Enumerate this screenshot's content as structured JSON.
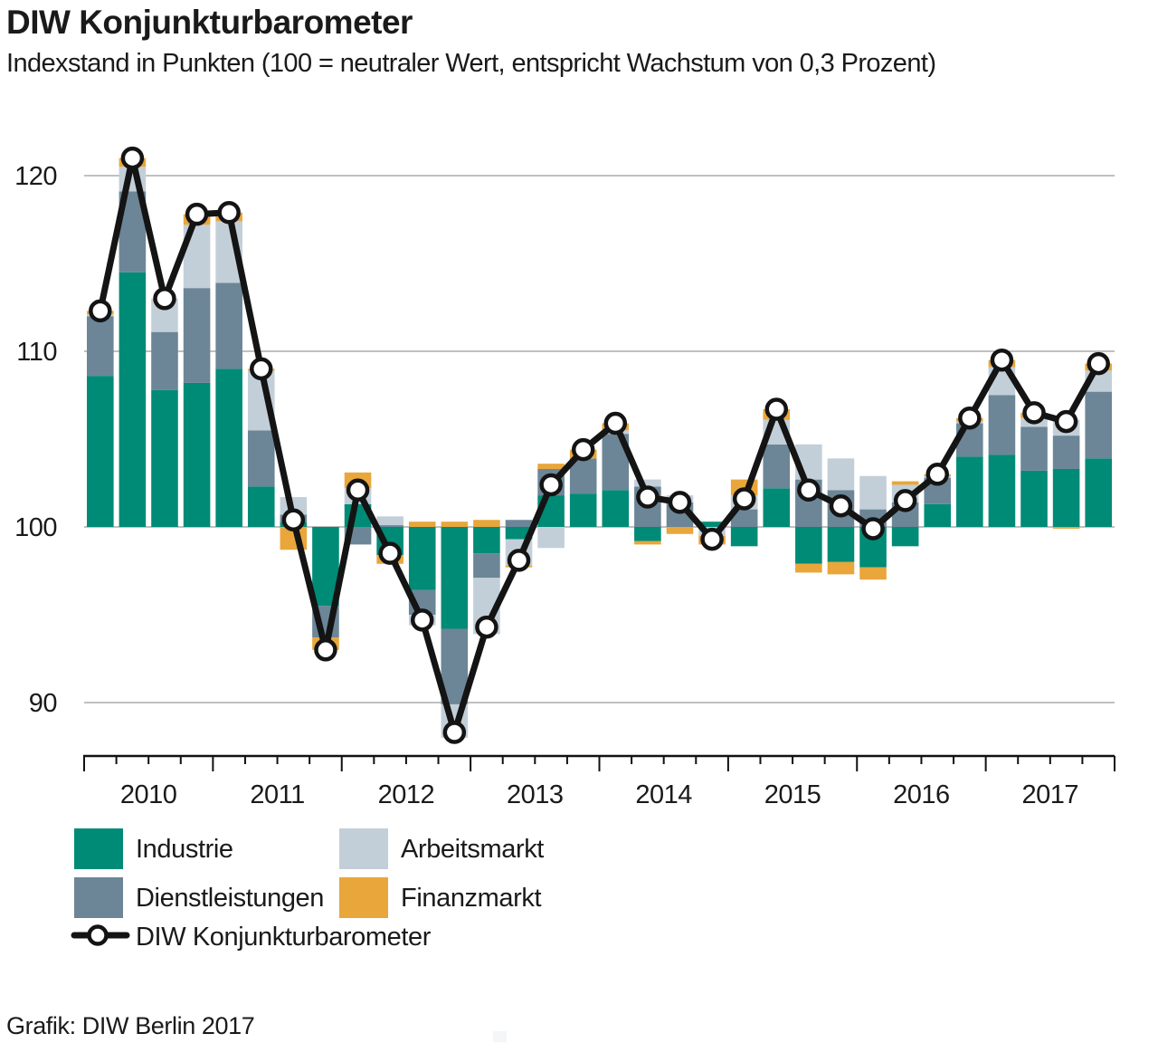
{
  "title": "DIW Konjunkturbarometer",
  "subtitle": "Indexstand in Punkten (100 = neutraler Wert, entspricht Wachstum von 0,3 Prozent)",
  "source": "Grafik: DIW Berlin 2017",
  "colors": {
    "industrie": "#008B76",
    "dienstleistungen": "#6C8697",
    "arbeitsmarkt": "#C3CFD8",
    "finanzmarkt": "#E9A63B",
    "line": "#141414",
    "grid": "#9B9B9B",
    "axis": "#111111",
    "text": "#1A1A1A"
  },
  "legend": {
    "items": [
      {
        "label": "Industrie",
        "color": "#008B76"
      },
      {
        "label": "Dienstleistungen",
        "color": "#6C8697"
      },
      {
        "label": "Arbeitsmarkt",
        "color": "#C3CFD8"
      },
      {
        "label": "Finanzmarkt",
        "color": "#E9A63B"
      },
      {
        "label": "DIW Konjunkturbarometer",
        "type": "line-marker"
      }
    ]
  },
  "chart_data": {
    "type": "bar",
    "stacked": true,
    "baseline": 100,
    "ylim": [
      86,
      123
    ],
    "yticks": [
      90,
      100,
      110,
      120
    ],
    "grid": "on",
    "legend_position": "bottom",
    "x_year_labels": [
      "2010",
      "2011",
      "2012",
      "2013",
      "2014",
      "2015",
      "2016",
      "2017"
    ],
    "categories": [
      "2010 Q1",
      "2010 Q2",
      "2010 Q3",
      "2010 Q4",
      "2011 Q1",
      "2011 Q2",
      "2011 Q3",
      "2011 Q4",
      "2012 Q1",
      "2012 Q2",
      "2012 Q3",
      "2012 Q4",
      "2013 Q1",
      "2013 Q2",
      "2013 Q3",
      "2013 Q4",
      "2014 Q1",
      "2014 Q2",
      "2014 Q3",
      "2014 Q4",
      "2015 Q1",
      "2015 Q2",
      "2015 Q3",
      "2015 Q4",
      "2016 Q1",
      "2016 Q2",
      "2016 Q3",
      "2016 Q4",
      "2017 Q1",
      "2017 Q2",
      "2017 Q3",
      "2017 Q4"
    ],
    "series": [
      {
        "name": "Industrie",
        "color": "#008B76",
        "values": [
          8.6,
          14.5,
          7.8,
          8.2,
          9.0,
          2.3,
          0.3,
          -4.5,
          1.3,
          -1.6,
          -3.6,
          -5.8,
          -1.5,
          -0.7,
          1.8,
          1.9,
          2.1,
          -0.8,
          0.0,
          0.3,
          -1.1,
          2.2,
          -2.1,
          -2.0,
          -2.3,
          -1.1,
          1.3,
          4.0,
          4.1,
          3.2,
          3.3,
          3.9
        ]
      },
      {
        "name": "Dienstleistungen",
        "color": "#6C8697",
        "values": [
          3.4,
          4.6,
          3.3,
          5.4,
          4.9,
          3.2,
          0.4,
          -1.8,
          -1.0,
          0.1,
          -1.4,
          -4.3,
          -1.4,
          0.4,
          1.5,
          2.0,
          3.2,
          2.3,
          1.4,
          0.0,
          1.0,
          2.5,
          2.7,
          2.1,
          1.0,
          1.4,
          1.5,
          1.9,
          3.4,
          2.5,
          1.9,
          3.8
        ]
      },
      {
        "name": "Arbeitsmarkt",
        "color": "#C3CFD8",
        "values": [
          0.1,
          1.4,
          1.9,
          3.6,
          3.5,
          3.4,
          1.0,
          0.0,
          0.9,
          0.5,
          -0.6,
          -1.9,
          -3.2,
          -1.5,
          -1.2,
          0.0,
          0.2,
          0.4,
          0.4,
          -0.5,
          0.8,
          1.4,
          2.0,
          1.8,
          1.9,
          1.0,
          0.1,
          0.1,
          1.6,
          0.5,
          0.9,
          1.2
        ]
      },
      {
        "name": "Finanzmarkt",
        "color": "#E9A63B",
        "values": [
          0.2,
          0.5,
          0.0,
          0.6,
          0.5,
          0.1,
          -1.3,
          -0.7,
          0.9,
          -0.5,
          0.3,
          0.3,
          0.4,
          -0.1,
          0.3,
          0.5,
          0.4,
          -0.2,
          -0.4,
          -0.5,
          0.9,
          0.6,
          -0.5,
          -0.7,
          -0.7,
          0.2,
          0.1,
          0.2,
          0.4,
          0.3,
          -0.1,
          0.4
        ]
      }
    ],
    "line_series": {
      "name": "DIW Konjunkturbarometer",
      "color": "#141414",
      "values": [
        112.3,
        121.0,
        113.0,
        117.8,
        117.9,
        109.0,
        100.4,
        93.0,
        102.1,
        98.5,
        94.7,
        88.3,
        94.3,
        98.1,
        102.4,
        104.4,
        105.9,
        101.7,
        101.4,
        99.3,
        101.6,
        106.7,
        102.1,
        101.2,
        99.9,
        101.5,
        103.0,
        106.2,
        109.5,
        106.5,
        106.0,
        109.3
      ]
    }
  }
}
